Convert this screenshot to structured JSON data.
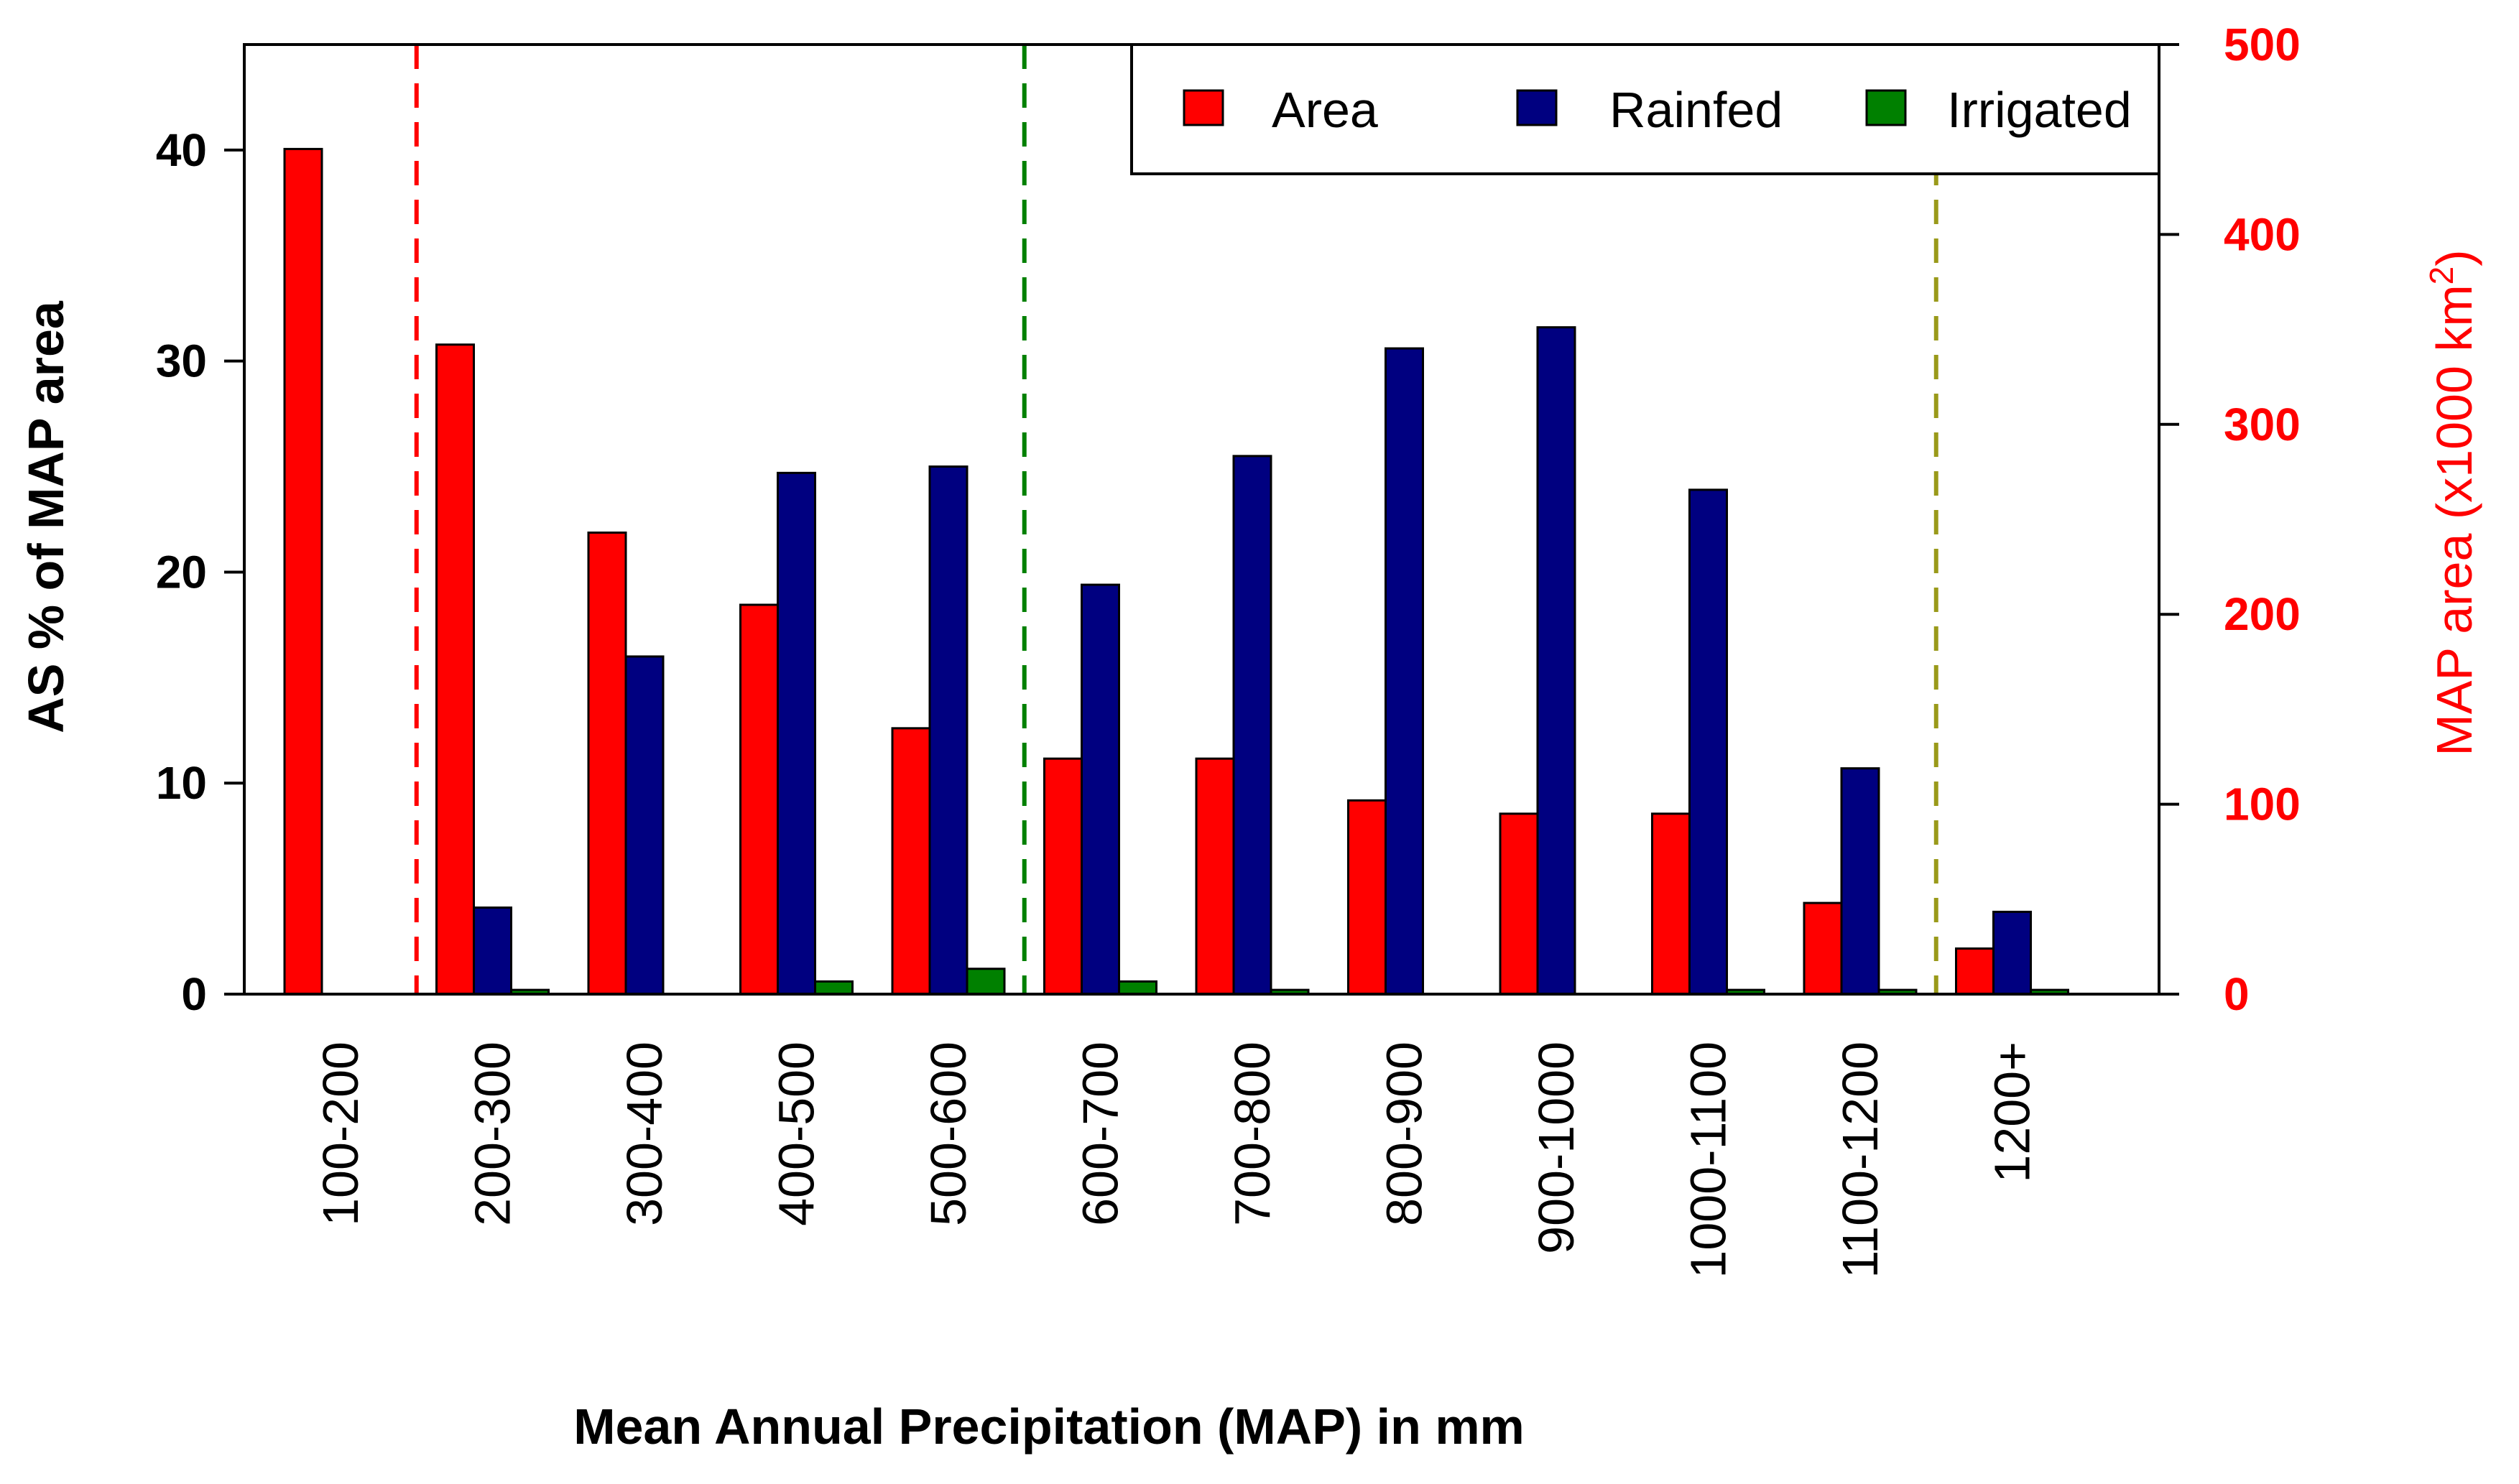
{
  "chart_data": {
    "type": "bar",
    "title": "",
    "xlabel": "Mean Annual Precipitation (MAP) in mm",
    "ylabel": "AS % of MAP area",
    "ylabel_right": "MAP area (x1000 km",
    "ylabel_right_sup": "2",
    "ylabel_right_close": ")",
    "ylim": [
      0,
      45
    ],
    "ylim_right": [
      0,
      500
    ],
    "yticks": [
      0,
      10,
      20,
      30,
      40
    ],
    "yticks_right": [
      0,
      100,
      200,
      300,
      400,
      500
    ],
    "categories": [
      "100-200",
      "200-300",
      "300-400",
      "400-500",
      "500-600",
      "600-700",
      "700-800",
      "800-900",
      "900-1000",
      "1000-1100",
      "1100-1200",
      "1200+"
    ],
    "series": [
      {
        "name": "Area",
        "axis": "right",
        "color": "#ff0000",
        "values": [
          445,
          342,
          243,
          205,
          140,
          124,
          124,
          102,
          95,
          95,
          48,
          24
        ]
      },
      {
        "name": "Rainfed",
        "axis": "left",
        "color": "#000080",
        "values": [
          0,
          4.1,
          16.0,
          24.7,
          25.0,
          19.4,
          25.5,
          30.6,
          31.6,
          23.9,
          10.7,
          3.9
        ]
      },
      {
        "name": "Irrigated",
        "axis": "left",
        "color": "#008000",
        "values": [
          0,
          0.2,
          0,
          0.6,
          1.2,
          0.6,
          0.2,
          0,
          0,
          0.2,
          0.2,
          0.2
        ]
      }
    ],
    "vlines": [
      {
        "after_category": "100-200",
        "color": "#ff0000"
      },
      {
        "after_category": "500-600",
        "color": "#008000"
      },
      {
        "after_category": "1100-1200",
        "color": "#9a9a1a"
      }
    ],
    "legend_position": "top-right"
  }
}
